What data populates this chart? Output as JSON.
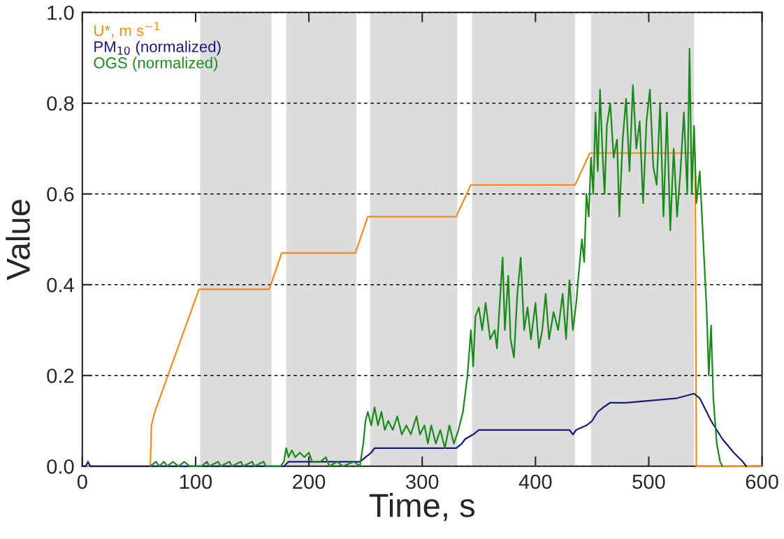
{
  "chart_data": {
    "type": "line",
    "xlabel": "Time, s",
    "ylabel": "Value",
    "xlim": [
      0,
      600
    ],
    "xticks": [
      0,
      100,
      200,
      300,
      400,
      500,
      600
    ],
    "ylim": [
      0,
      1.0
    ],
    "yticks": [
      {
        "value": 0,
        "label": "0.0"
      },
      0.2,
      0.4,
      0.6,
      0.8,
      {
        "value": 1.0,
        "label": "1.0"
      }
    ],
    "grid": "y",
    "legend": "top left",
    "marker": "none",
    "line_style": "solid",
    "bands": [
      {
        "axis": "x",
        "from": 104,
        "to": 167,
        "color": "#dcdcdc"
      },
      {
        "axis": "x",
        "from": 180,
        "to": 242,
        "color": "#dcdcdc"
      },
      {
        "axis": "x",
        "from": 254,
        "to": 331,
        "color": "#dcdcdc"
      },
      {
        "axis": "x",
        "from": 344,
        "to": 435,
        "color": "#dcdcdc"
      },
      {
        "axis": "x",
        "from": 449,
        "to": 540,
        "color": "#dcdcdc"
      }
    ],
    "series": [
      {
        "name": "U*, m s$^{−1}$",
        "color": "#f28c1c",
        "x": [
          0,
          60,
          61,
          64,
          103,
          165,
          176,
          241,
          252,
          330,
          343,
          435,
          448,
          541,
          542,
          600
        ],
        "values": [
          0,
          0,
          0.09,
          0.12,
          0.39,
          0.39,
          0.47,
          0.47,
          0.55,
          0.55,
          0.62,
          0.62,
          0.69,
          0.69,
          0,
          0
        ]
      },
      {
        "name": "PM$_{10}$ (normalized)",
        "color": "#1a1a80",
        "x": [
          0,
          3,
          5,
          7,
          178,
          182,
          245,
          250,
          255,
          258,
          330,
          335,
          338,
          345,
          350,
          430,
          433,
          436,
          445,
          450,
          455,
          460,
          466,
          480,
          525,
          540,
          545,
          555,
          565,
          575,
          583,
          586
        ],
        "values": [
          0,
          0,
          0.01,
          0,
          0,
          0.01,
          0.01,
          0.02,
          0.03,
          0.04,
          0.04,
          0.05,
          0.06,
          0.07,
          0.08,
          0.08,
          0.07,
          0.08,
          0.09,
          0.1,
          0.12,
          0.13,
          0.14,
          0.14,
          0.15,
          0.16,
          0.15,
          0.1,
          0.06,
          0.03,
          0.01,
          0
        ]
      },
      {
        "name": "OGS (normalized)",
        "color": "#1a8a1a",
        "x": [
          60,
          65,
          68,
          72,
          75,
          80,
          85,
          90,
          95,
          105,
          110,
          112,
          120,
          122,
          130,
          132,
          140,
          142,
          150,
          152,
          160,
          162,
          175,
          178,
          180,
          182,
          185,
          188,
          192,
          196,
          200,
          203,
          210,
          215,
          218,
          225,
          230,
          240,
          245,
          248,
          250,
          252,
          255,
          258,
          261,
          264,
          267,
          270,
          274,
          278,
          282,
          286,
          290,
          295,
          298,
          302,
          305,
          308,
          312,
          316,
          320,
          324,
          328,
          332,
          336,
          340,
          343,
          345,
          347,
          350,
          353,
          356,
          360,
          364,
          366,
          368,
          371,
          373,
          376,
          378,
          381,
          384,
          387,
          390,
          393,
          396,
          400,
          403,
          406,
          409,
          412,
          416,
          420,
          424,
          427,
          430,
          433,
          436,
          438,
          441,
          443,
          445,
          447,
          449,
          451,
          453,
          455,
          457,
          459,
          461,
          463,
          466,
          469,
          472,
          474,
          477,
          480,
          483,
          486,
          489,
          492,
          495,
          498,
          501,
          504,
          507,
          510,
          513,
          516,
          519,
          522,
          525,
          528,
          531,
          534,
          536,
          538,
          540,
          542,
          545,
          548,
          551,
          553,
          555,
          557,
          560,
          563,
          565
        ],
        "values": [
          0,
          0.01,
          0,
          0.01,
          0,
          0.01,
          0,
          0.01,
          0,
          0,
          0.01,
          0,
          0.01,
          0,
          0.01,
          0,
          0.01,
          0,
          0.01,
          0,
          0.01,
          0,
          0,
          0.01,
          0.04,
          0.02,
          0.035,
          0.02,
          0.03,
          0.02,
          0.03,
          0.01,
          0.01,
          0.02,
          0,
          0.01,
          0,
          0.01,
          0,
          0.05,
          0.1,
          0.12,
          0.09,
          0.13,
          0.09,
          0.12,
          0.08,
          0.1,
          0.08,
          0.11,
          0.07,
          0.09,
          0.07,
          0.11,
          0.07,
          0.09,
          0.05,
          0.09,
          0.05,
          0.08,
          0.04,
          0.09,
          0.05,
          0.08,
          0.12,
          0.2,
          0.3,
          0.22,
          0.33,
          0.35,
          0.3,
          0.36,
          0.28,
          0.3,
          0.26,
          0.34,
          0.46,
          0.3,
          0.42,
          0.28,
          0.24,
          0.38,
          0.46,
          0.3,
          0.35,
          0.28,
          0.36,
          0.26,
          0.3,
          0.38,
          0.28,
          0.34,
          0.3,
          0.38,
          0.28,
          0.41,
          0.3,
          0.36,
          0.42,
          0.5,
          0.45,
          0.6,
          0.55,
          0.68,
          0.6,
          0.78,
          0.65,
          0.83,
          0.7,
          0.6,
          0.75,
          0.8,
          0.68,
          0.72,
          0.55,
          0.72,
          0.81,
          0.65,
          0.84,
          0.7,
          0.76,
          0.58,
          0.76,
          0.83,
          0.66,
          0.62,
          0.8,
          0.55,
          0.78,
          0.52,
          0.7,
          0.55,
          0.65,
          0.78,
          0.6,
          0.92,
          0.6,
          0.75,
          0.58,
          0.65,
          0.5,
          0.35,
          0.2,
          0.31,
          0.15,
          0.05,
          0.01,
          0
        ]
      }
    ]
  }
}
